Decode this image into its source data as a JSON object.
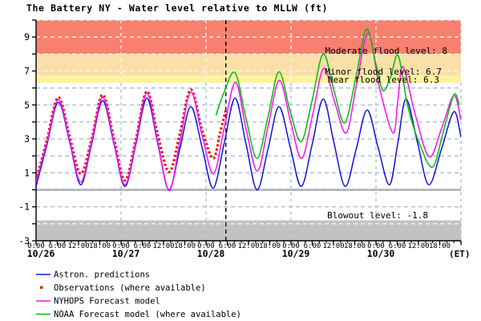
{
  "title": "The Battery NY  -  Water level relative to MLLW (ft)",
  "timezone_label": "(ET)",
  "chart_data": {
    "type": "line",
    "title": "The Battery NY - Water level relative to MLLW (ft)",
    "ylabel": "Water level relative to MLLW (ft)",
    "y_axis": {
      "min": -3,
      "max": 10,
      "tick_every": 1,
      "labeled": [
        9,
        7,
        5,
        3,
        1,
        -1,
        -3
      ],
      "gridline_values": [
        9,
        8,
        7,
        6.7,
        6.3,
        6,
        5,
        4,
        3,
        2,
        1,
        0,
        -1,
        -2
      ]
    },
    "x_axis": {
      "hours_span": 120,
      "major_tick_every_h": 6,
      "minor_tick_every_h": 2,
      "time_labels": [
        "0:00",
        "6:00",
        "12:00",
        "18:00"
      ],
      "day_labels": [
        "10/26",
        "10/27",
        "10/28",
        "10/29",
        "10/30"
      ],
      "suffix": "(ET)"
    },
    "bands": [
      {
        "name": "moderate-flood",
        "label": "Moderate flood level: 8",
        "level": 8,
        "from": 8,
        "to": 10,
        "color": "#f8806e"
      },
      {
        "name": "minor-flood",
        "label": "Minor flood level: 6.7",
        "level": 6.7,
        "from": 6.7,
        "to": 8,
        "color": "#fbdfa8"
      },
      {
        "name": "near-flood",
        "label": "Near flood level: 6.3",
        "level": 6.3,
        "from": 6.3,
        "to": 6.7,
        "color": "#fdf494"
      },
      {
        "name": "blowout",
        "label": "Blowout level: -1.8",
        "level": -1.8,
        "from": -3,
        "to": -1.8,
        "color": "#c2c2c2"
      }
    ],
    "zero_line": 0,
    "now_marker_hour": 53.6,
    "series": [
      {
        "name": "Astron. predictions",
        "color": "#1212dc",
        "style": "line",
        "points": [
          [
            0,
            0.2
          ],
          [
            3,
            2.6
          ],
          [
            6.3,
            5.15
          ],
          [
            9.5,
            2.8
          ],
          [
            12.6,
            0.3
          ],
          [
            15.7,
            2.7
          ],
          [
            18.8,
            5.25
          ],
          [
            22,
            2.7
          ],
          [
            25.1,
            0.2
          ],
          [
            28.2,
            2.7
          ],
          [
            31.3,
            5.4
          ],
          [
            34.4,
            2.7
          ],
          [
            37.5,
            0.0
          ],
          [
            40.6,
            2.4
          ],
          [
            43.7,
            4.9
          ],
          [
            46.9,
            2.5
          ],
          [
            50.0,
            0.1
          ],
          [
            53.1,
            2.7
          ],
          [
            56.2,
            5.4
          ],
          [
            59.3,
            2.7
          ],
          [
            62.4,
            0.0
          ],
          [
            65.5,
            2.4
          ],
          [
            68.6,
            4.9
          ],
          [
            71.8,
            2.5
          ],
          [
            74.9,
            0.2
          ],
          [
            78,
            2.7
          ],
          [
            81.1,
            5.35
          ],
          [
            84.2,
            2.7
          ],
          [
            87.3,
            0.2
          ],
          [
            90.4,
            2.4
          ],
          [
            93.5,
            4.7
          ],
          [
            96.6,
            2.5
          ],
          [
            99.8,
            0.3
          ],
          [
            102.2,
            2.8
          ],
          [
            104.5,
            5.35
          ],
          [
            107.7,
            2.8
          ],
          [
            110.9,
            0.3
          ],
          [
            114.5,
            2.4
          ],
          [
            118,
            4.6
          ],
          [
            120,
            3.1
          ]
        ]
      },
      {
        "name": "Observations (where available)",
        "color": "#ee1212",
        "style": "dots",
        "points": [
          [
            0,
            0.55
          ],
          [
            3,
            2.9
          ],
          [
            6.3,
            5.45
          ],
          [
            9.5,
            3.1
          ],
          [
            12.6,
            0.95
          ],
          [
            15.7,
            3.0
          ],
          [
            18.8,
            5.6
          ],
          [
            22,
            3.0
          ],
          [
            25.1,
            0.55
          ],
          [
            28.2,
            3.0
          ],
          [
            31.3,
            5.8
          ],
          [
            34.4,
            3.2
          ],
          [
            37.6,
            1.05
          ],
          [
            40.6,
            3.3
          ],
          [
            43.7,
            5.9
          ],
          [
            46.9,
            3.5
          ],
          [
            50.0,
            1.85
          ],
          [
            52,
            3.4
          ],
          [
            53.6,
            4.7
          ]
        ]
      },
      {
        "name": "NYHOPS Forecast model",
        "color": "#fb10f0",
        "style": "line",
        "points": [
          [
            0,
            0.45
          ],
          [
            3,
            2.75
          ],
          [
            6.3,
            5.3
          ],
          [
            9.5,
            2.9
          ],
          [
            12.6,
            0.45
          ],
          [
            15.7,
            2.85
          ],
          [
            18.8,
            5.45
          ],
          [
            22,
            2.8
          ],
          [
            25.1,
            0.3
          ],
          [
            28.2,
            2.85
          ],
          [
            31.3,
            5.7
          ],
          [
            34.4,
            2.8
          ],
          [
            37.6,
            -0.05
          ],
          [
            40.6,
            2.8
          ],
          [
            43.7,
            5.75
          ],
          [
            46.9,
            3.2
          ],
          [
            50.1,
            0.95
          ],
          [
            53.1,
            3.6
          ],
          [
            56.3,
            6.35
          ],
          [
            59.3,
            3.6
          ],
          [
            62.5,
            1.1
          ],
          [
            65.5,
            3.7
          ],
          [
            68.7,
            6.45
          ],
          [
            71.9,
            4.0
          ],
          [
            75.0,
            1.85
          ],
          [
            78.1,
            4.4
          ],
          [
            81.2,
            7.15
          ],
          [
            84.3,
            5.2
          ],
          [
            87.6,
            3.35
          ],
          [
            90.5,
            6.2
          ],
          [
            93.8,
            9.25
          ],
          [
            97,
            6.0
          ],
          [
            100.8,
            3.35
          ],
          [
            102.2,
            5.3
          ],
          [
            103.6,
            7.25
          ],
          [
            107,
            4.5
          ],
          [
            111,
            1.95
          ],
          [
            114.5,
            3.6
          ],
          [
            118,
            5.55
          ],
          [
            120,
            4.1
          ]
        ]
      },
      {
        "name": "NOAA Forecast model (where available)",
        "color": "#00be00",
        "style": "line",
        "points": [
          [
            50.8,
            4.4
          ],
          [
            53,
            5.7
          ],
          [
            56.2,
            6.9
          ],
          [
            59.3,
            4.2
          ],
          [
            62.4,
            1.85
          ],
          [
            65.5,
            4.3
          ],
          [
            68.6,
            6.95
          ],
          [
            71.8,
            4.6
          ],
          [
            74.9,
            2.85
          ],
          [
            78,
            5.3
          ],
          [
            81.1,
            8.0
          ],
          [
            84.2,
            5.8
          ],
          [
            87.2,
            3.95
          ],
          [
            90.3,
            6.6
          ],
          [
            93.3,
            9.45
          ],
          [
            96,
            7.4
          ],
          [
            98,
            5.85
          ],
          [
            100.2,
            6.7
          ],
          [
            102.3,
            7.9
          ],
          [
            105,
            4.9
          ],
          [
            108.5,
            2.6
          ],
          [
            112,
            1.35
          ],
          [
            115,
            3.4
          ],
          [
            118,
            5.6
          ],
          [
            119.5,
            5.0
          ]
        ]
      }
    ]
  },
  "legend": {
    "items": [
      "Astron. predictions",
      "Observations (where available)",
      "NYHOPS Forecast model",
      "NOAA Forecast model (where available)"
    ]
  }
}
